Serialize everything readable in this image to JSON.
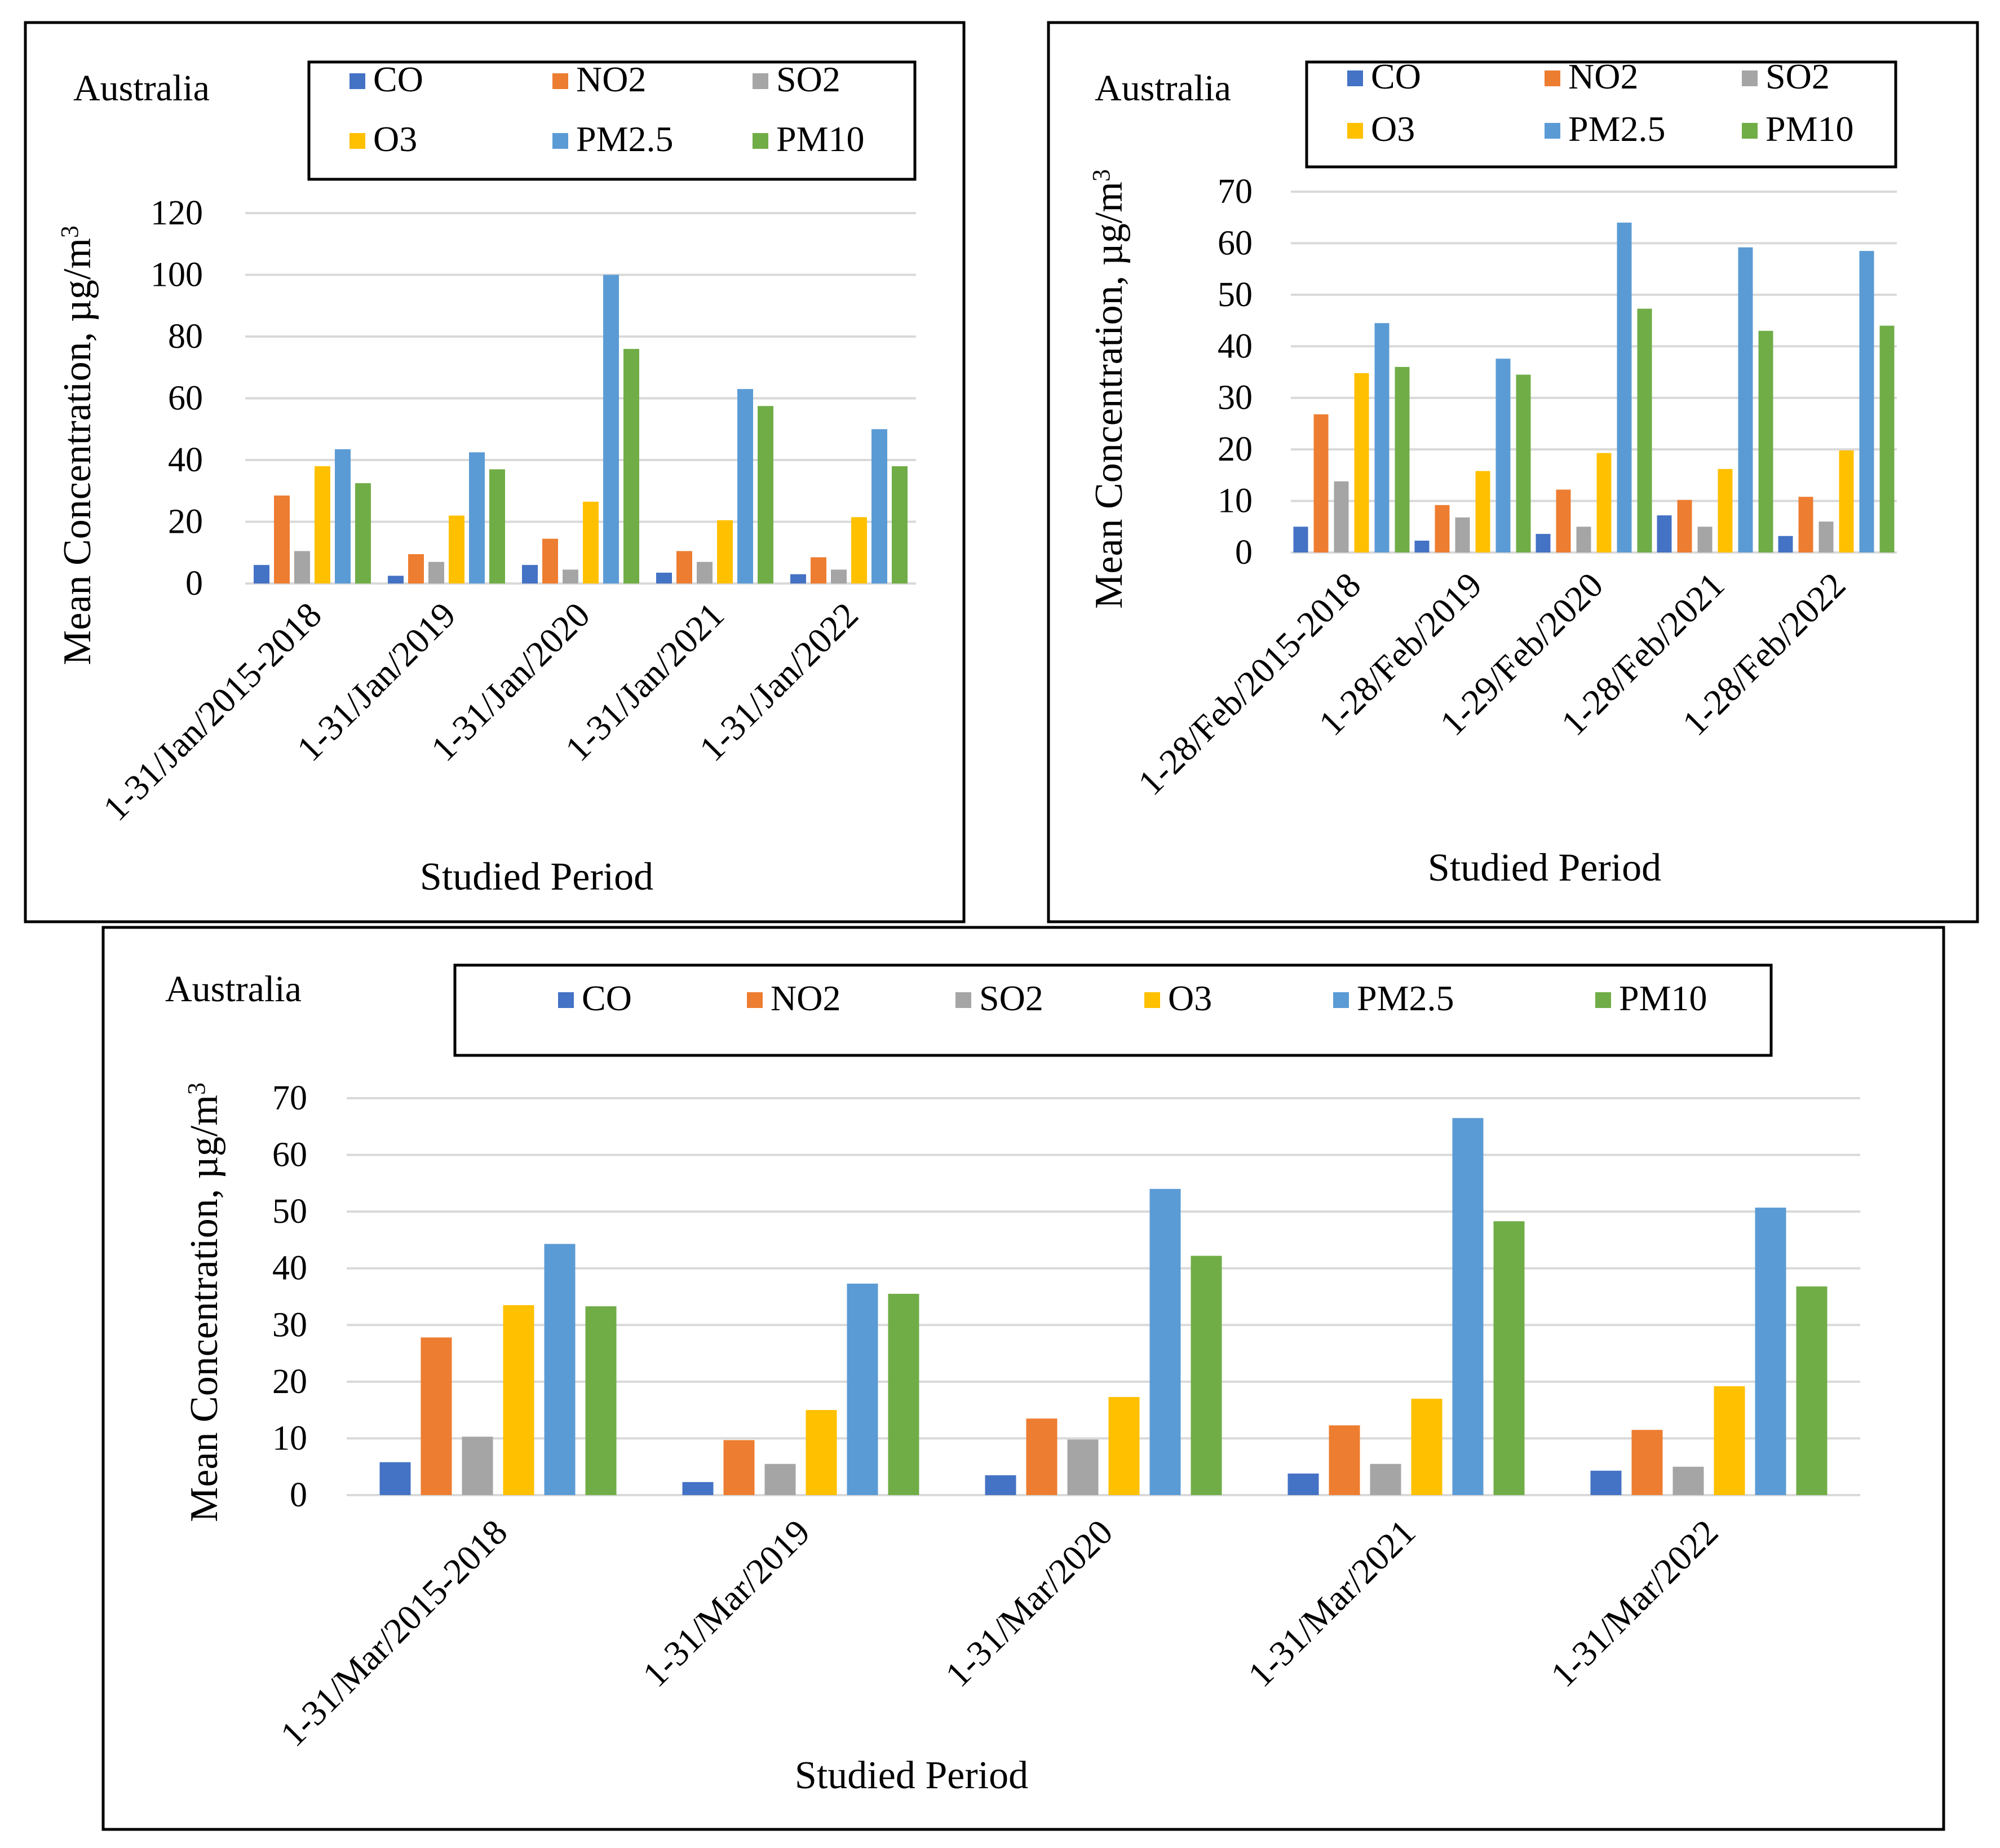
{
  "series_colors": {
    "CO": "#4472c4",
    "NO2": "#ed7d31",
    "SO2": "#a5a5a5",
    "O3": "#ffc000",
    "PM2.5": "#5b9bd5",
    "PM10": "#70ad47"
  },
  "chart_data": [
    {
      "type": "bar",
      "title": "Australia",
      "xlabel": "Studied Period",
      "ylabel": "Mean Concentration, µg/m",
      "ylabel_sup": "3",
      "ylim": [
        0,
        120
      ],
      "yticks": [
        0,
        20,
        40,
        60,
        80,
        100,
        120
      ],
      "categories": [
        "1-31/Jan/2015-2018",
        "1-31/Jan/2019",
        "1-31/Jan/2020",
        "1-31/Jan/2021",
        "1-31/Jan/2022"
      ],
      "series": [
        {
          "name": "CO",
          "values": [
            6,
            2.5,
            6,
            3.5,
            3
          ]
        },
        {
          "name": "NO2",
          "values": [
            28.5,
            9.5,
            14.5,
            10.5,
            8.5
          ]
        },
        {
          "name": "SO2",
          "values": [
            10.5,
            7,
            4.5,
            7,
            4.5
          ]
        },
        {
          "name": "O3",
          "values": [
            38,
            22,
            26.5,
            20.5,
            21.5
          ]
        },
        {
          "name": "PM2.5",
          "values": [
            43.5,
            42.5,
            100,
            63,
            50
          ]
        },
        {
          "name": "PM10",
          "values": [
            32.5,
            37,
            76,
            57.5,
            38
          ]
        }
      ]
    },
    {
      "type": "bar",
      "title": "Australia",
      "xlabel": "Studied Period",
      "ylabel": "Mean Concentration, µg/m",
      "ylabel_sup": "3",
      "ylim": [
        0,
        70
      ],
      "yticks": [
        0,
        10,
        20,
        30,
        40,
        50,
        60,
        70
      ],
      "categories": [
        "1-28/Feb/2015-2018",
        "1-28/Feb/2019",
        "1-29/Feb/2020",
        "1-28/Feb/2021",
        "1-28/Feb/2022"
      ],
      "series": [
        {
          "name": "CO",
          "values": [
            5,
            2.3,
            3.6,
            7.2,
            3.2
          ]
        },
        {
          "name": "NO2",
          "values": [
            26.8,
            9.2,
            12.2,
            10.2,
            10.8
          ]
        },
        {
          "name": "SO2",
          "values": [
            13.8,
            6.8,
            5,
            5,
            6
          ]
        },
        {
          "name": "O3",
          "values": [
            34.8,
            15.8,
            19.3,
            16.2,
            19.8
          ]
        },
        {
          "name": "PM2.5",
          "values": [
            44.5,
            37.6,
            64,
            59.2,
            58.5
          ]
        },
        {
          "name": "PM10",
          "values": [
            36,
            34.5,
            47.3,
            43,
            44
          ]
        }
      ]
    },
    {
      "type": "bar",
      "title": "Australia",
      "xlabel": "Studied Period",
      "ylabel": "Mean Concentration, µg/m",
      "ylabel_sup": "3",
      "ylim": [
        0,
        70
      ],
      "yticks": [
        0,
        10,
        20,
        30,
        40,
        50,
        60,
        70
      ],
      "categories": [
        "1-31/Mar/2015-2018",
        "1-31/Mar/2019",
        "1-31/Mar/2020",
        "1-31/Mar/2021",
        "1-31/Mar/2022"
      ],
      "series": [
        {
          "name": "CO",
          "values": [
            5.8,
            2.3,
            3.5,
            3.8,
            4.3
          ]
        },
        {
          "name": "NO2",
          "values": [
            27.8,
            9.7,
            13.5,
            12.3,
            11.5
          ]
        },
        {
          "name": "SO2",
          "values": [
            10.3,
            5.5,
            9.8,
            5.5,
            5
          ]
        },
        {
          "name": "O3",
          "values": [
            33.5,
            15,
            17.3,
            17,
            19.2
          ]
        },
        {
          "name": "PM2.5",
          "values": [
            44.3,
            37.3,
            54,
            66.5,
            50.7
          ]
        },
        {
          "name": "PM10",
          "values": [
            33.3,
            35.5,
            42.2,
            48.3,
            36.8
          ]
        }
      ]
    }
  ]
}
